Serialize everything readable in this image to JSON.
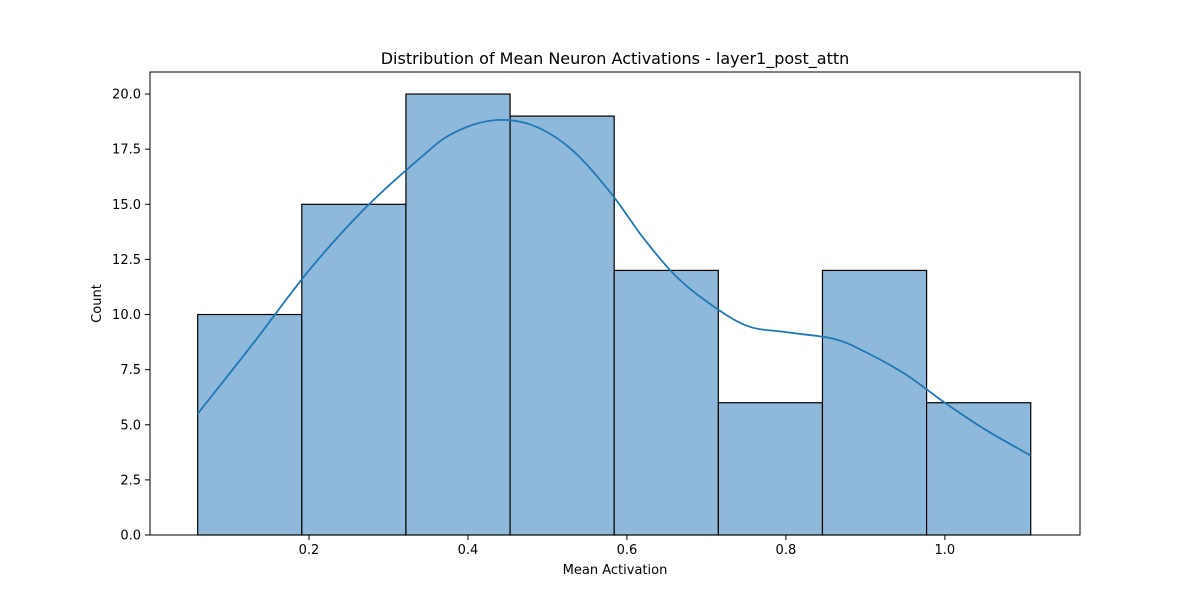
{
  "chart_data": {
    "type": "histogram",
    "title": "Distribution of Mean Neuron Activations - layer1_post_attn",
    "xlabel": "Mean Activation",
    "ylabel": "Count",
    "xlim": [
      0.0,
      1.17
    ],
    "ylim": [
      0,
      21
    ],
    "x_ticks": [
      0.2,
      0.4,
      0.6,
      0.8,
      1.0
    ],
    "x_tick_labels": [
      "0.2",
      "0.4",
      "0.6",
      "0.8",
      "1.0"
    ],
    "y_ticks": [
      0,
      2.5,
      5,
      7.5,
      10,
      12.5,
      15,
      17.5,
      20
    ],
    "y_tick_labels": [
      "0.0",
      "2.5",
      "5.0",
      "7.5",
      "10.0",
      "12.5",
      "15.0",
      "17.5",
      "20.0"
    ],
    "bins": [
      {
        "x0": 0.06,
        "x1": 0.191,
        "count": 10
      },
      {
        "x0": 0.191,
        "x1": 0.322,
        "count": 15
      },
      {
        "x0": 0.322,
        "x1": 0.453,
        "count": 20
      },
      {
        "x0": 0.453,
        "x1": 0.584,
        "count": 19
      },
      {
        "x0": 0.584,
        "x1": 0.715,
        "count": 12
      },
      {
        "x0": 0.715,
        "x1": 0.846,
        "count": 6
      },
      {
        "x0": 0.846,
        "x1": 0.977,
        "count": 12
      },
      {
        "x0": 0.977,
        "x1": 1.108,
        "count": 6
      }
    ],
    "kde": {
      "x": [
        0.06,
        0.13,
        0.2,
        0.27,
        0.34,
        0.38,
        0.43,
        0.48,
        0.53,
        0.58,
        0.62,
        0.66,
        0.7,
        0.75,
        0.8,
        0.86,
        0.9,
        0.95,
        1.0,
        1.05,
        1.108
      ],
      "y": [
        5.5,
        8.7,
        12.0,
        14.8,
        17.1,
        18.2,
        18.8,
        18.6,
        17.5,
        15.5,
        13.5,
        11.8,
        10.6,
        9.5,
        9.2,
        8.9,
        8.3,
        7.3,
        6.0,
        4.8,
        3.6
      ]
    },
    "colors": {
      "bar_fill": "#8fb9da",
      "bar_edge": "#000000",
      "kde_line": "#1f77b4"
    },
    "grid": false,
    "legend": "none"
  }
}
